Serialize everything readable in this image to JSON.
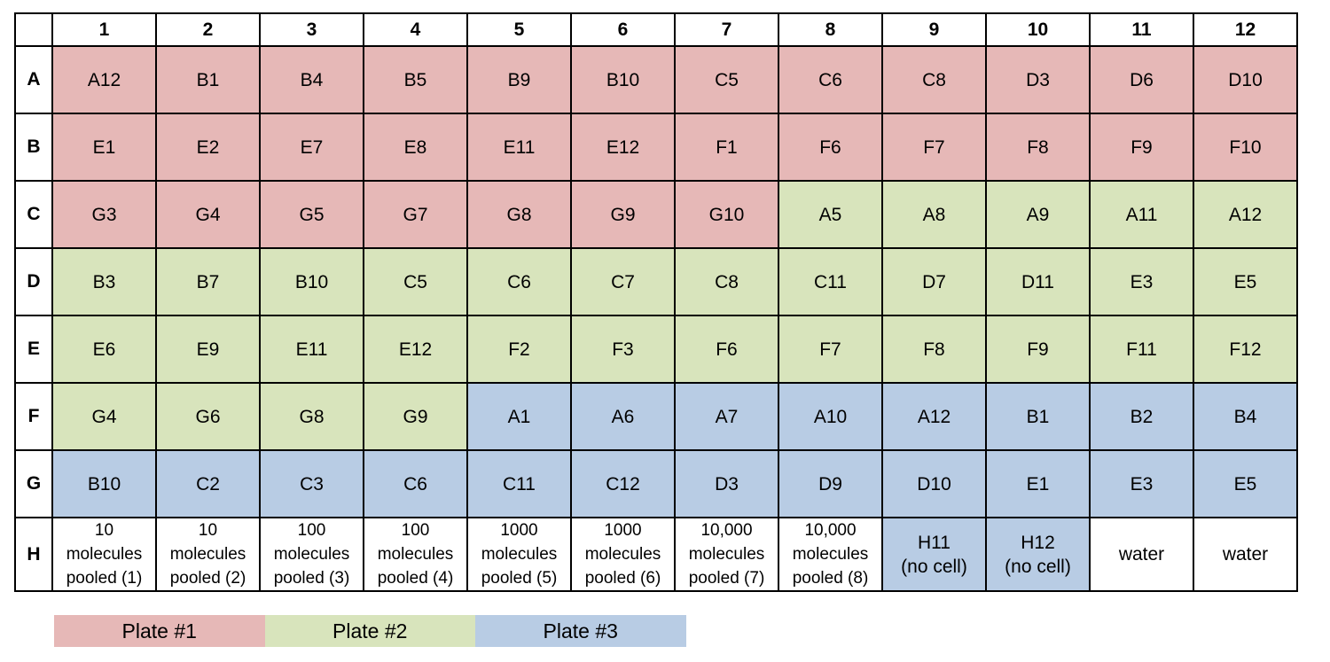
{
  "columns": [
    "1",
    "2",
    "3",
    "4",
    "5",
    "6",
    "7",
    "8",
    "9",
    "10",
    "11",
    "12"
  ],
  "rows": [
    {
      "label": "A",
      "cells": [
        {
          "text": "A12",
          "plate": "p1"
        },
        {
          "text": "B1",
          "plate": "p1"
        },
        {
          "text": "B4",
          "plate": "p1"
        },
        {
          "text": "B5",
          "plate": "p1"
        },
        {
          "text": "B9",
          "plate": "p1"
        },
        {
          "text": "B10",
          "plate": "p1"
        },
        {
          "text": "C5",
          "plate": "p1"
        },
        {
          "text": "C6",
          "plate": "p1"
        },
        {
          "text": "C8",
          "plate": "p1"
        },
        {
          "text": "D3",
          "plate": "p1"
        },
        {
          "text": "D6",
          "plate": "p1"
        },
        {
          "text": "D10",
          "plate": "p1"
        }
      ]
    },
    {
      "label": "B",
      "cells": [
        {
          "text": "E1",
          "plate": "p1"
        },
        {
          "text": "E2",
          "plate": "p1"
        },
        {
          "text": "E7",
          "plate": "p1"
        },
        {
          "text": "E8",
          "plate": "p1"
        },
        {
          "text": "E11",
          "plate": "p1"
        },
        {
          "text": "E12",
          "plate": "p1"
        },
        {
          "text": "F1",
          "plate": "p1"
        },
        {
          "text": "F6",
          "plate": "p1"
        },
        {
          "text": "F7",
          "plate": "p1"
        },
        {
          "text": "F8",
          "plate": "p1"
        },
        {
          "text": "F9",
          "plate": "p1"
        },
        {
          "text": "F10",
          "plate": "p1"
        }
      ]
    },
    {
      "label": "C",
      "cells": [
        {
          "text": "G3",
          "plate": "p1"
        },
        {
          "text": "G4",
          "plate": "p1"
        },
        {
          "text": "G5",
          "plate": "p1"
        },
        {
          "text": "G7",
          "plate": "p1"
        },
        {
          "text": "G8",
          "plate": "p1"
        },
        {
          "text": "G9",
          "plate": "p1"
        },
        {
          "text": "G10",
          "plate": "p1"
        },
        {
          "text": "A5",
          "plate": "p2"
        },
        {
          "text": "A8",
          "plate": "p2"
        },
        {
          "text": "A9",
          "plate": "p2"
        },
        {
          "text": "A11",
          "plate": "p2"
        },
        {
          "text": "A12",
          "plate": "p2"
        }
      ]
    },
    {
      "label": "D",
      "cells": [
        {
          "text": "B3",
          "plate": "p2"
        },
        {
          "text": "B7",
          "plate": "p2"
        },
        {
          "text": "B10",
          "plate": "p2"
        },
        {
          "text": "C5",
          "plate": "p2"
        },
        {
          "text": "C6",
          "plate": "p2"
        },
        {
          "text": "C7",
          "plate": "p2"
        },
        {
          "text": "C8",
          "plate": "p2"
        },
        {
          "text": "C11",
          "plate": "p2"
        },
        {
          "text": "D7",
          "plate": "p2"
        },
        {
          "text": "D11",
          "plate": "p2"
        },
        {
          "text": "E3",
          "plate": "p2"
        },
        {
          "text": "E5",
          "plate": "p2"
        }
      ]
    },
    {
      "label": "E",
      "cells": [
        {
          "text": "E6",
          "plate": "p2"
        },
        {
          "text": "E9",
          "plate": "p2"
        },
        {
          "text": "E11",
          "plate": "p2"
        },
        {
          "text": "E12",
          "plate": "p2"
        },
        {
          "text": "F2",
          "plate": "p2"
        },
        {
          "text": "F3",
          "plate": "p2"
        },
        {
          "text": "F6",
          "plate": "p2"
        },
        {
          "text": "F7",
          "plate": "p2"
        },
        {
          "text": "F8",
          "plate": "p2"
        },
        {
          "text": "F9",
          "plate": "p2"
        },
        {
          "text": "F11",
          "plate": "p2"
        },
        {
          "text": "F12",
          "plate": "p2"
        }
      ]
    },
    {
      "label": "F",
      "cells": [
        {
          "text": "G4",
          "plate": "p2"
        },
        {
          "text": "G6",
          "plate": "p2"
        },
        {
          "text": "G8",
          "plate": "p2"
        },
        {
          "text": "G9",
          "plate": "p2"
        },
        {
          "text": "A1",
          "plate": "p3"
        },
        {
          "text": "A6",
          "plate": "p3"
        },
        {
          "text": "A7",
          "plate": "p3"
        },
        {
          "text": "A10",
          "plate": "p3"
        },
        {
          "text": "A12",
          "plate": "p3"
        },
        {
          "text": "B1",
          "plate": "p3"
        },
        {
          "text": "B2",
          "plate": "p3"
        },
        {
          "text": "B4",
          "plate": "p3"
        }
      ]
    },
    {
      "label": "G",
      "cells": [
        {
          "text": "B10",
          "plate": "p3"
        },
        {
          "text": "C2",
          "plate": "p3"
        },
        {
          "text": "C3",
          "plate": "p3"
        },
        {
          "text": "C6",
          "plate": "p3"
        },
        {
          "text": "C11",
          "plate": "p3"
        },
        {
          "text": "C12",
          "plate": "p3"
        },
        {
          "text": "D3",
          "plate": "p3"
        },
        {
          "text": "D9",
          "plate": "p3"
        },
        {
          "text": "D10",
          "plate": "p3"
        },
        {
          "text": "E1",
          "plate": "p3"
        },
        {
          "text": "E3",
          "plate": "p3"
        },
        {
          "text": "E5",
          "plate": "p3"
        }
      ]
    },
    {
      "label": "H",
      "cells": [
        {
          "text": "10\nmolecules\npooled (1)",
          "plate": "none",
          "kind": "pool"
        },
        {
          "text": "10\nmolecules\npooled (2)",
          "plate": "none",
          "kind": "pool"
        },
        {
          "text": "100\nmolecules\npooled (3)",
          "plate": "none",
          "kind": "pool"
        },
        {
          "text": "100\nmolecules\npooled (4)",
          "plate": "none",
          "kind": "pool"
        },
        {
          "text": "1000\nmolecules\npooled (5)",
          "plate": "none",
          "kind": "pool"
        },
        {
          "text": "1000\nmolecules\npooled (6)",
          "plate": "none",
          "kind": "pool"
        },
        {
          "text": "10,000\nmolecules\npooled (7)",
          "plate": "none",
          "kind": "pool"
        },
        {
          "text": "10,000\nmolecules\npooled (8)",
          "plate": "none",
          "kind": "pool"
        },
        {
          "text": "H11\n(no cell)",
          "plate": "p3",
          "kind": "ctrl"
        },
        {
          "text": "H12\n(no cell)",
          "plate": "p3",
          "kind": "ctrl"
        },
        {
          "text": "water",
          "plate": "none"
        },
        {
          "text": "water",
          "plate": "none"
        }
      ]
    }
  ],
  "legend": [
    {
      "label": "Plate #1",
      "plate": "p1",
      "color": "#e6b8b7"
    },
    {
      "label": "Plate #2",
      "plate": "p2",
      "color": "#d8e4bc"
    },
    {
      "label": "Plate #3",
      "plate": "p3",
      "color": "#b8cce4"
    }
  ]
}
